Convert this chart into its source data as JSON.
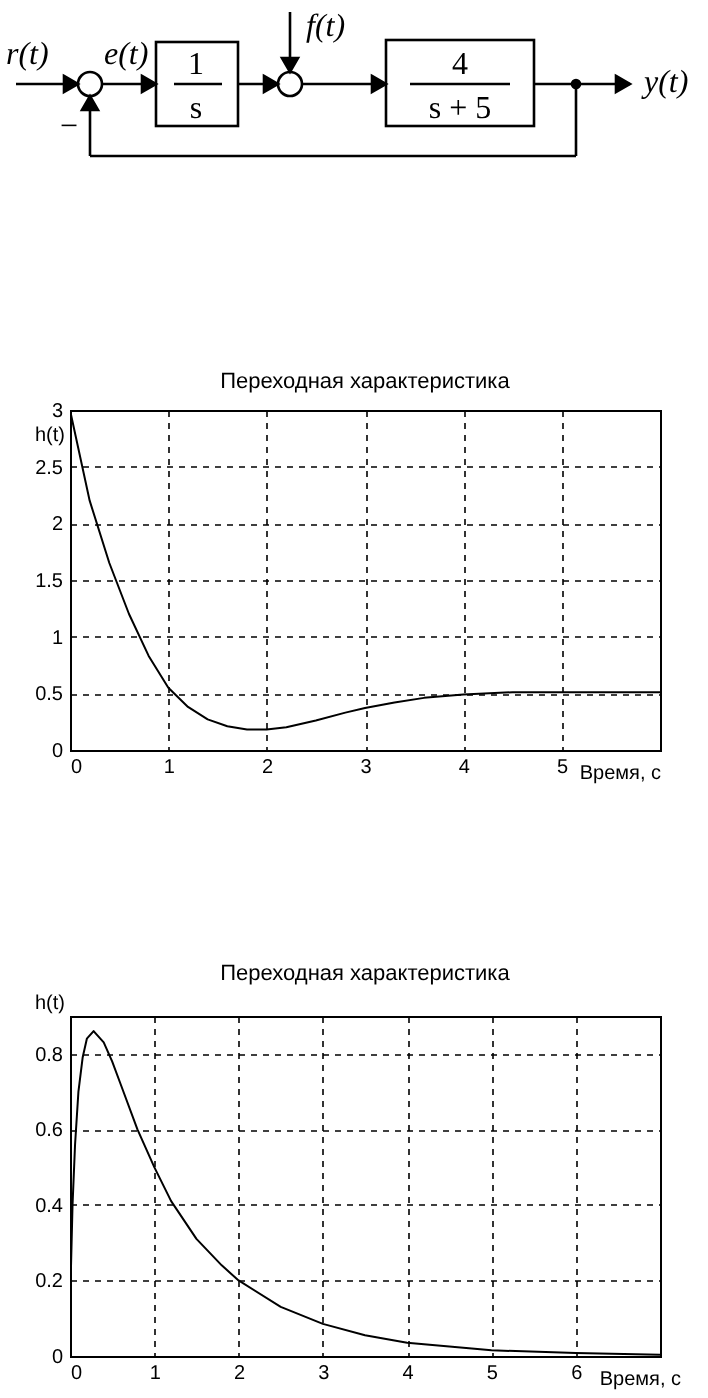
{
  "chart_data": [
    {
      "type": "other",
      "annotations": [
        "r(t)",
        "e(t)",
        "1",
        "s",
        "f(t)",
        "4",
        "s + 5",
        "y(t)",
        "−"
      ]
    },
    {
      "type": "line",
      "title": "Переходная характеристика",
      "xlabel": "Время, с",
      "ylabel": "h(t)",
      "xlim": [
        0,
        6
      ],
      "ylim": [
        0,
        3
      ],
      "xticks": [
        0,
        1,
        2,
        3,
        4,
        5
      ],
      "yticks": [
        0,
        0.5,
        1,
        1.5,
        2,
        2.5,
        3
      ],
      "grid": true,
      "x": [
        0,
        0.2,
        0.4,
        0.6,
        0.8,
        1,
        1.2,
        1.4,
        1.6,
        1.8,
        2,
        2.2,
        2.5,
        2.8,
        3,
        3.3,
        3.6,
        4,
        4.5,
        5,
        5.5,
        6
      ],
      "series": [
        {
          "color": "#000000",
          "values": [
            3,
            2.2,
            1.65,
            1.2,
            0.83,
            0.55,
            0.38,
            0.27,
            0.21,
            0.18,
            0.18,
            0.2,
            0.26,
            0.33,
            0.37,
            0.42,
            0.46,
            0.49,
            0.51,
            0.51,
            0.51,
            0.51
          ]
        }
      ]
    },
    {
      "type": "line",
      "title": "Переходная характеристика",
      "xlabel": "Время, с",
      "ylabel": "h(t)",
      "xlim": [
        0,
        7
      ],
      "ylim": [
        0,
        0.9
      ],
      "xticks": [
        0,
        1,
        2,
        3,
        4,
        5,
        6
      ],
      "yticks": [
        0,
        0.2,
        0.4,
        0.6,
        0.8
      ],
      "grid": true,
      "x": [
        0,
        0.03,
        0.06,
        0.1,
        0.15,
        0.2,
        0.28,
        0.4,
        0.5,
        0.6,
        0.8,
        1,
        1.2,
        1.5,
        1.8,
        2,
        2.5,
        3,
        3.5,
        4,
        4.5,
        5,
        6,
        7
      ],
      "series": [
        {
          "color": "#000000",
          "values": [
            0.13,
            0.4,
            0.56,
            0.7,
            0.79,
            0.84,
            0.86,
            0.83,
            0.78,
            0.72,
            0.6,
            0.5,
            0.41,
            0.31,
            0.24,
            0.2,
            0.13,
            0.085,
            0.055,
            0.035,
            0.025,
            0.015,
            0.008,
            0.003
          ]
        }
      ]
    }
  ]
}
